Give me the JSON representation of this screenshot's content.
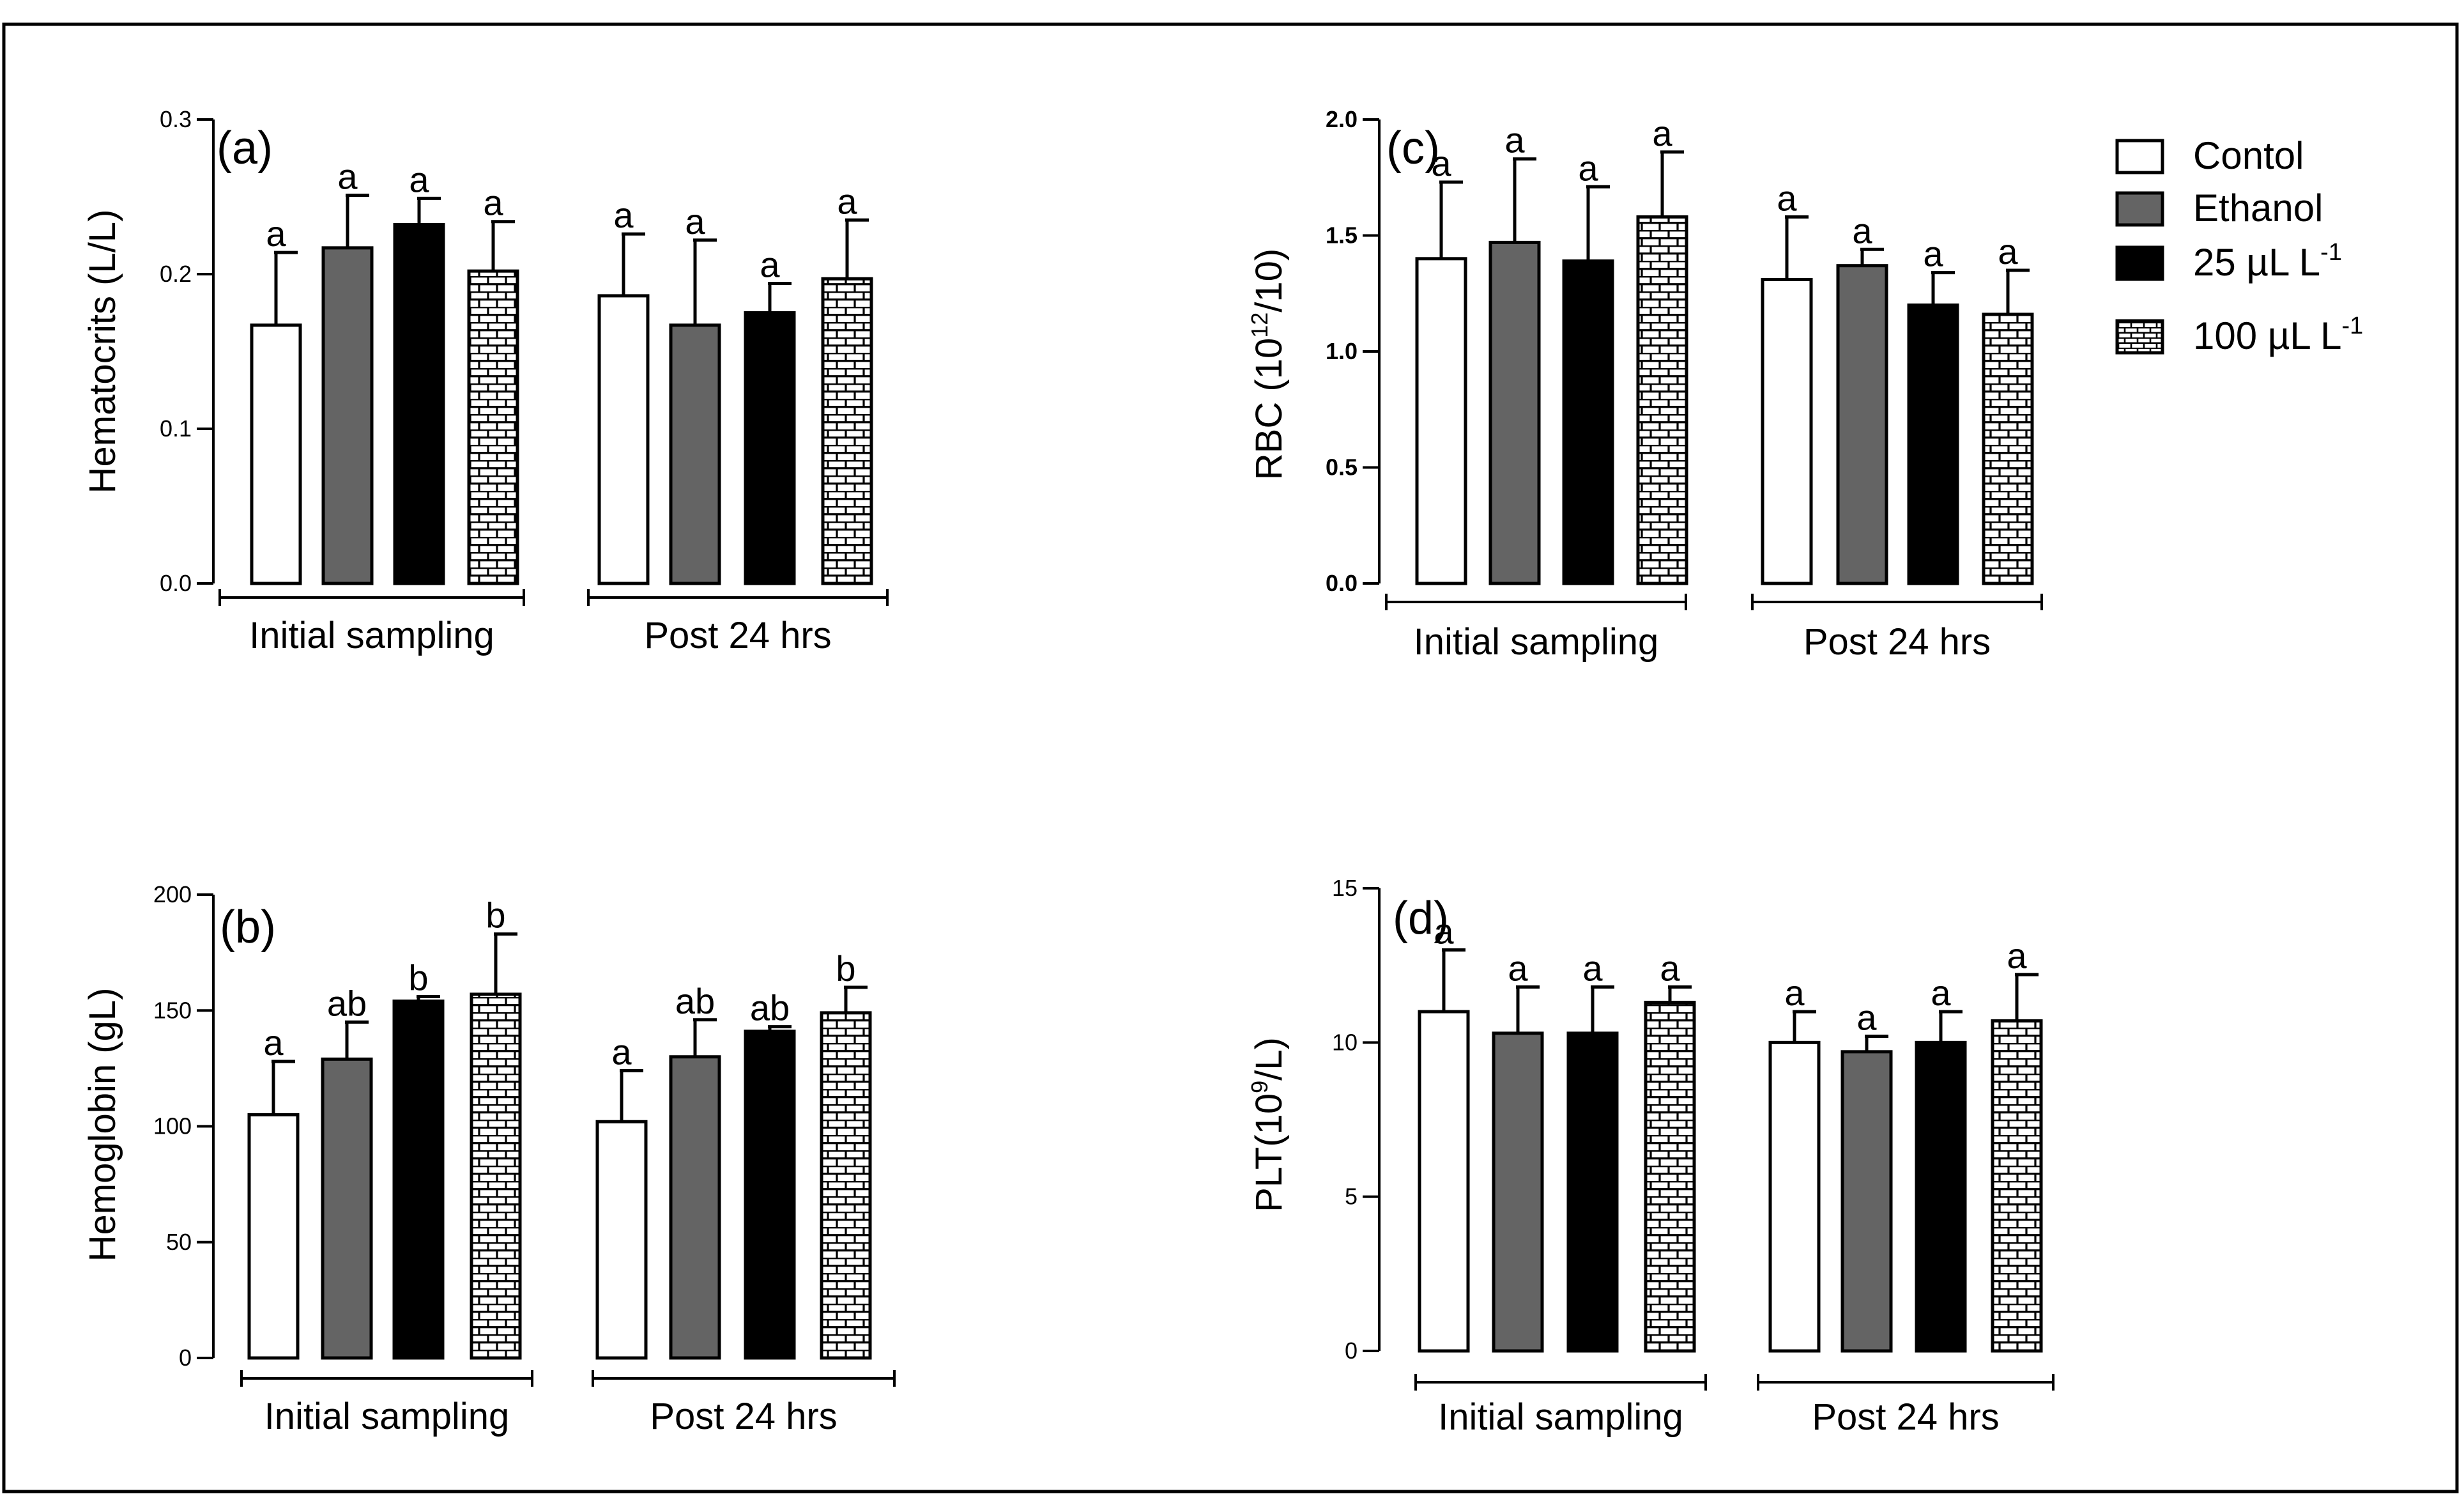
{
  "legend": {
    "entries": [
      {
        "label": "Contol",
        "sup": "",
        "pattern": "white"
      },
      {
        "label": "Ethanol",
        "sup": "",
        "pattern": "gray"
      },
      {
        "label": "25 µL L",
        "sup": "-1",
        "pattern": "black"
      },
      {
        "label": "100 µL L",
        "sup": "-1",
        "pattern": "brick"
      }
    ]
  },
  "patterns": {
    "white": "#ffffff",
    "gray": "#646464",
    "black": "#000000",
    "brick": "#000000"
  },
  "chart_data": [
    {
      "type": "bar",
      "panel_label": "(a)",
      "ylabel": "Hematocrits (L/L)",
      "ylabel_sup": "",
      "ylabel_tail": "",
      "ylim": [
        0,
        0.3
      ],
      "yticks": [
        "0.0",
        "0.1",
        "0.2",
        "0.3"
      ],
      "groups": [
        "Initial sampling",
        "Post 24 hrs"
      ],
      "series": [
        {
          "name": "Contol",
          "values": [
            0.167,
            0.186
          ],
          "errors": [
            0.047,
            0.04
          ],
          "letters": [
            "a",
            "a"
          ]
        },
        {
          "name": "Ethanol",
          "values": [
            0.217,
            0.167
          ],
          "errors": [
            0.034,
            0.055
          ],
          "letters": [
            "a",
            "a"
          ]
        },
        {
          "name": "25 µL L-1",
          "values": [
            0.232,
            0.175
          ],
          "errors": [
            0.017,
            0.019
          ],
          "letters": [
            "a",
            "a"
          ]
        },
        {
          "name": "100 µL L-1",
          "values": [
            0.202,
            0.197
          ],
          "errors": [
            0.032,
            0.038
          ],
          "letters": [
            "a",
            "a"
          ]
        }
      ]
    },
    {
      "type": "bar",
      "panel_label": "(b)",
      "ylabel": "Hemoglobin (gL)",
      "ylabel_sup": "",
      "ylabel_tail": "",
      "ylim": [
        0,
        200
      ],
      "yticks": [
        "0",
        "50",
        "100",
        "150",
        "200"
      ],
      "groups": [
        "Initial sampling",
        "Post 24 hrs"
      ],
      "series": [
        {
          "name": "Contol",
          "values": [
            105,
            102
          ],
          "errors": [
            23,
            22
          ],
          "letters": [
            "a",
            "a"
          ]
        },
        {
          "name": "Ethanol",
          "values": [
            129,
            130
          ],
          "errors": [
            16,
            16
          ],
          "letters": [
            "ab",
            "ab"
          ]
        },
        {
          "name": "25 µL L-1",
          "values": [
            154,
            141
          ],
          "errors": [
            2,
            2
          ],
          "letters": [
            "b",
            "ab"
          ]
        },
        {
          "name": "100 µL L-1",
          "values": [
            157,
            149
          ],
          "errors": [
            26,
            11
          ],
          "letters": [
            "b",
            "b"
          ]
        }
      ]
    },
    {
      "type": "bar",
      "panel_label": "(c)",
      "ylabel": "RBC (10",
      "ylabel_sup": "12",
      "ylabel_tail": "/10)",
      "ylim": [
        0,
        2.0
      ],
      "yticks": [
        "0.0",
        "0.5",
        "1.0",
        "1.5",
        "2.0"
      ],
      "groups": [
        "Initial sampling",
        "Post 24 hrs"
      ],
      "series": [
        {
          "name": "Contol",
          "values": [
            1.4,
            1.31
          ],
          "errors": [
            0.33,
            0.27
          ],
          "letters": [
            "a",
            "a"
          ]
        },
        {
          "name": "Ethanol",
          "values": [
            1.47,
            1.37
          ],
          "errors": [
            0.36,
            0.07
          ],
          "letters": [
            "a",
            "a"
          ]
        },
        {
          "name": "25 µL L-1",
          "values": [
            1.39,
            1.2
          ],
          "errors": [
            0.32,
            0.14
          ],
          "letters": [
            "a",
            "a"
          ]
        },
        {
          "name": "100 µL L-1",
          "values": [
            1.58,
            1.16
          ],
          "errors": [
            0.28,
            0.19
          ],
          "letters": [
            "a",
            "a"
          ]
        }
      ]
    },
    {
      "type": "bar",
      "panel_label": "(d)",
      "ylabel": "PLT(10",
      "ylabel_sup": "9",
      "ylabel_tail": "/L)",
      "ylim": [
        0,
        15
      ],
      "yticks": [
        "0",
        "5",
        "10",
        "15"
      ],
      "groups": [
        "Initial sampling",
        "Post 24 hrs"
      ],
      "series": [
        {
          "name": "Contol",
          "values": [
            11.0,
            10.0
          ],
          "errors": [
            2.0,
            1.0
          ],
          "letters": [
            "a",
            "a"
          ]
        },
        {
          "name": "Ethanol",
          "values": [
            10.3,
            9.7
          ],
          "errors": [
            1.5,
            0.5
          ],
          "letters": [
            "a",
            "a"
          ]
        },
        {
          "name": "25 µL L-1",
          "values": [
            10.3,
            10.0
          ],
          "errors": [
            1.5,
            1.0
          ],
          "letters": [
            "a",
            "a"
          ]
        },
        {
          "name": "100 µL L-1",
          "values": [
            11.3,
            10.7
          ],
          "errors": [
            0.5,
            1.5
          ],
          "letters": [
            "a",
            "a"
          ]
        }
      ]
    }
  ]
}
